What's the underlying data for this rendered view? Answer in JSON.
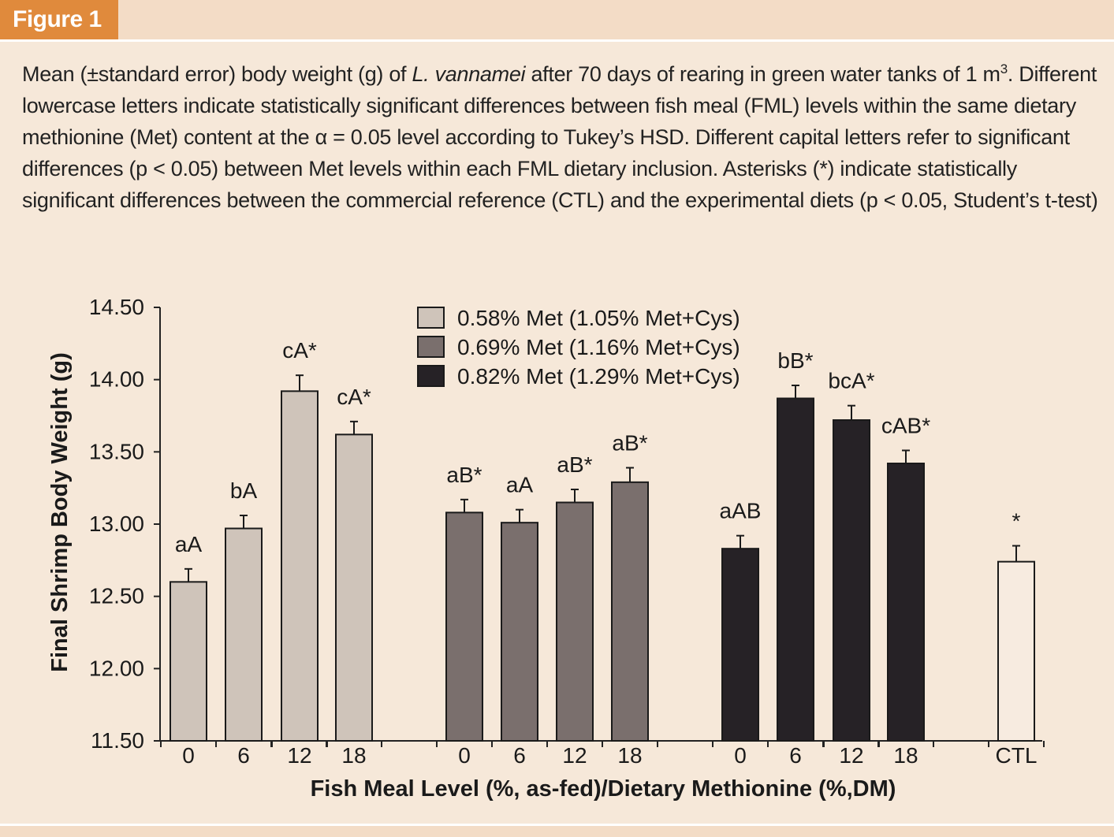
{
  "figure": {
    "tab_label": "Figure 1",
    "caption": {
      "part1": "Mean (±standard error) body weight (g) of ",
      "species": "L. vannamei",
      "part2": " after 70 days of rearing in green water tanks of 1 m",
      "sup": "3",
      "part3": ". Different lowercase letters indicate statistically significant differences between fish meal (FML) levels within the same dietary methionine (Met) content at the α = 0.05 level according to Tukey’s HSD. Different capital letters refer to significant differences (p < 0.05) between Met levels within each FML dietary inclusion. Asterisks (*) indicate statistically significant differences between the commercial reference (CTL) and the experimental diets (p < 0.05, Student’s t-test)"
    }
  },
  "colors": {
    "background": "#f6e8d9",
    "accent": "#e08a3c",
    "series_058": "#cfc4ba",
    "series_069": "#7a6f6d",
    "series_082": "#262226",
    "ctl": "#f7ebe0"
  },
  "chart_data": {
    "type": "bar",
    "title": "",
    "xlabel": "Fish Meal Level (%, as-fed)/Dietary Methionine (%,DM)",
    "ylabel": "Final Shrimp Body Weight (g)",
    "ylim": [
      11.5,
      14.5
    ],
    "yticks": [
      "11.50",
      "12.00",
      "12.50",
      "13.00",
      "13.50",
      "14.00",
      "14.50"
    ],
    "legend": [
      "0.58% Met (1.05% Met+Cys)",
      "0.69% Met (1.16% Met+Cys)",
      "0.82% Met (1.29% Met+Cys)"
    ],
    "legend_position": "top-center",
    "series": [
      {
        "name": "0.58% Met (1.05% Met+Cys)",
        "color": "#cfc4ba",
        "categories": [
          "0",
          "6",
          "12",
          "18"
        ],
        "values": [
          12.6,
          12.97,
          13.92,
          13.62
        ],
        "errors": [
          0.09,
          0.09,
          0.11,
          0.09
        ],
        "labels": [
          "aA",
          "bA",
          "cA*",
          "cA*"
        ]
      },
      {
        "name": "0.69% Met (1.16% Met+Cys)",
        "color": "#7a6f6d",
        "categories": [
          "0",
          "6",
          "12",
          "18"
        ],
        "values": [
          13.08,
          13.01,
          13.15,
          13.29
        ],
        "errors": [
          0.09,
          0.09,
          0.09,
          0.1
        ],
        "labels": [
          "aB*",
          "aA",
          "aB*",
          "aB*"
        ]
      },
      {
        "name": "0.82% Met (1.29% Met+Cys)",
        "color": "#262226",
        "categories": [
          "0",
          "6",
          "12",
          "18"
        ],
        "values": [
          12.83,
          13.87,
          13.72,
          13.42
        ],
        "errors": [
          0.09,
          0.09,
          0.1,
          0.09
        ],
        "labels": [
          "aAB",
          "bB*",
          "bcA*",
          "cAB*"
        ]
      },
      {
        "name": "CTL",
        "color": "#f7ebe0",
        "categories": [
          "CTL"
        ],
        "values": [
          12.74
        ],
        "errors": [
          0.11
        ],
        "labels": [
          "*"
        ]
      }
    ]
  }
}
